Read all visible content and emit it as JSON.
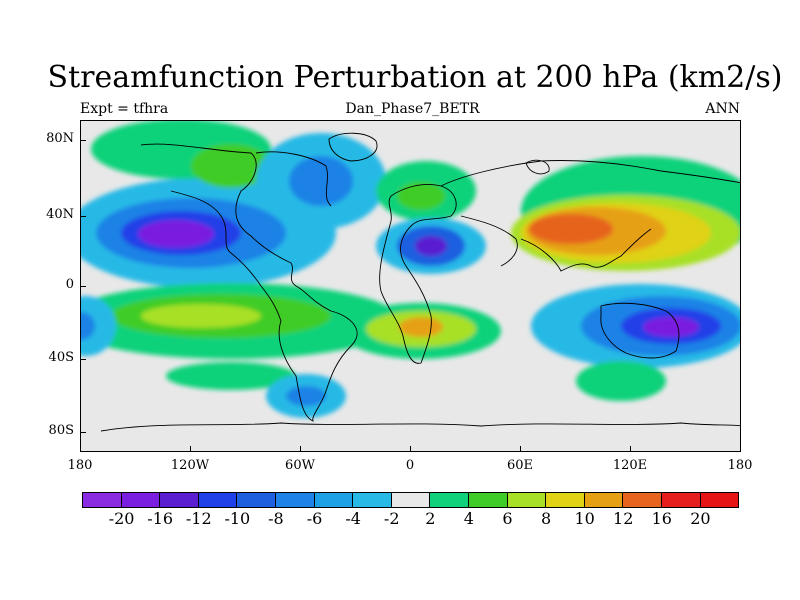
{
  "title": "Streamfunction Perturbation at 200 hPa (km2/s)",
  "subtitle_left": "Expt = tfhra",
  "subtitle_center": "Dan_Phase7_BETR",
  "subtitle_right": "ANN",
  "lat_labels": [
    "80N",
    "40N",
    "0",
    "40S",
    "80S"
  ],
  "lon_labels": [
    "180",
    "120W",
    "60W",
    "0",
    "60E",
    "120E",
    "180"
  ],
  "colorbar": {
    "levels": [
      "-20",
      "-16",
      "-12",
      "-10",
      "-8",
      "-6",
      "-4",
      "-2",
      "2",
      "4",
      "6",
      "8",
      "10",
      "12",
      "16",
      "20"
    ],
    "colors": [
      "#8a2be2",
      "#7a1fe0",
      "#5a1fd0",
      "#2040e8",
      "#1e5fe0",
      "#1e82e6",
      "#1ea0e6",
      "#28b9e6",
      "#e8e8e8",
      "#10d27a",
      "#40cc28",
      "#a8e028",
      "#e0d214",
      "#e6a014",
      "#e6641e",
      "#e61e1e",
      "#e61414"
    ]
  },
  "colors": {
    "background_neutral": "#e8e8e8",
    "coastline": "#000000"
  }
}
